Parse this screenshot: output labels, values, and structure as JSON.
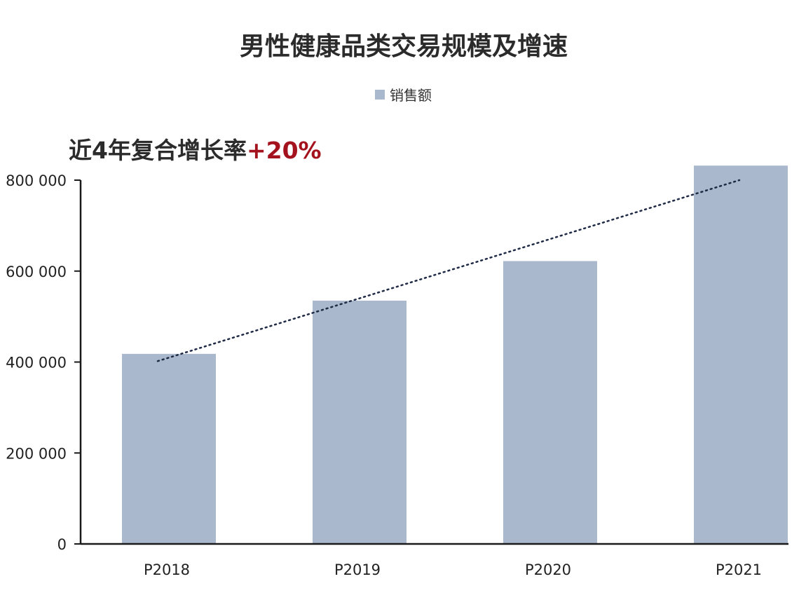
{
  "chart_data": {
    "type": "bar",
    "title": "男性健康品类交易规模及增速",
    "annotation": {
      "prefix": "近4年复合增长率",
      "value": "+20%"
    },
    "categories": [
      "P2018",
      "P2019",
      "P2020",
      "P2021"
    ],
    "series": [
      {
        "name": "销售额",
        "values": [
          418000,
          535000,
          622000,
          832000
        ]
      }
    ],
    "trendline": {
      "style": "dotted",
      "start": {
        "x": "P2018",
        "y": 402000
      },
      "end": {
        "x": "P2021",
        "y": 800000
      }
    },
    "ylim": [
      0,
      800000
    ],
    "yticks": [
      0,
      200000,
      400000,
      600000,
      800000
    ],
    "ytick_labels": [
      "0",
      "200 000",
      "400 000",
      "600 000",
      "800 000"
    ],
    "legend_position": "top-center",
    "grid": false,
    "colors": {
      "bar": "#aab8cd",
      "axis": "#1a1a1a",
      "trend": "#1f2a44",
      "accent": "#a3121d",
      "text": "#2b2b2b"
    }
  }
}
